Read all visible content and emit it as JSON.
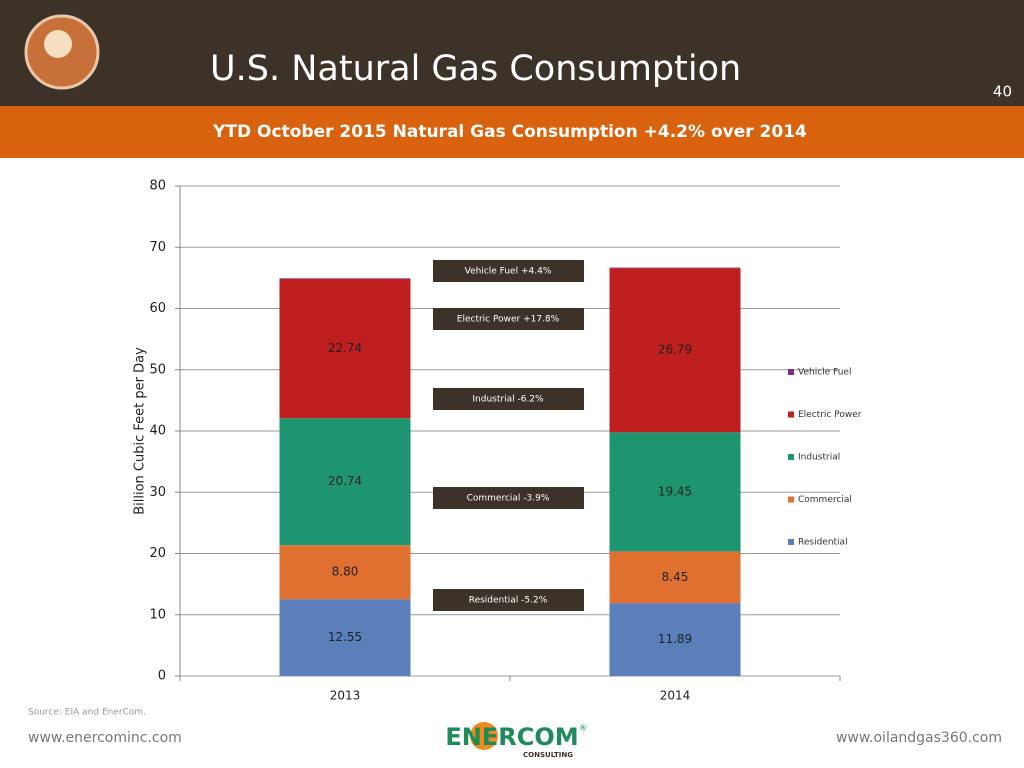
{
  "header": {
    "title": "U.S. Natural Gas Consumption",
    "page_number": "40",
    "subtitle": "YTD October 2015 Natural Gas Consumption +4.2% over 2014"
  },
  "chart_data": {
    "type": "stacked_bar",
    "y_label": "Billion Cubic Feet per Day",
    "categories": [
      "2013",
      "2014"
    ],
    "series": [
      {
        "name": "Residential",
        "color": "#5a7fba",
        "values": [
          12.55,
          11.89
        ]
      },
      {
        "name": "Commercial",
        "color": "#e07030",
        "values": [
          8.8,
          8.45
        ],
        "value_labels": [
          "8.80",
          "8.45"
        ]
      },
      {
        "name": "Industrial",
        "color": "#1f9470",
        "values": [
          20.74,
          19.45
        ]
      },
      {
        "name": "Electric Power",
        "color": "#be1e1e",
        "values": [
          22.74,
          26.79
        ]
      },
      {
        "name": "Vehicle Fuel",
        "color": "#7d2e8a",
        "values": [
          0.1,
          0.1
        ]
      }
    ],
    "ylim": [
      0,
      80
    ],
    "yticks": [
      0,
      10,
      20,
      30,
      40,
      50,
      60,
      70,
      80
    ],
    "grid": true,
    "annotations": [
      "Vehicle Fuel +4.4%",
      "Electric Power +17.8%",
      "Industrial  -6.2%",
      "Commercial -3.9%",
      "Residential  -5.2%"
    ]
  },
  "footer": {
    "source": "Source: EIA and EnerCom.",
    "left_url": "www.enercominc.com",
    "right_url": "www.oilandgas360.com",
    "logo": "ENERCOM",
    "logo_mark": "®",
    "logo_sub": "CONSULTING"
  }
}
